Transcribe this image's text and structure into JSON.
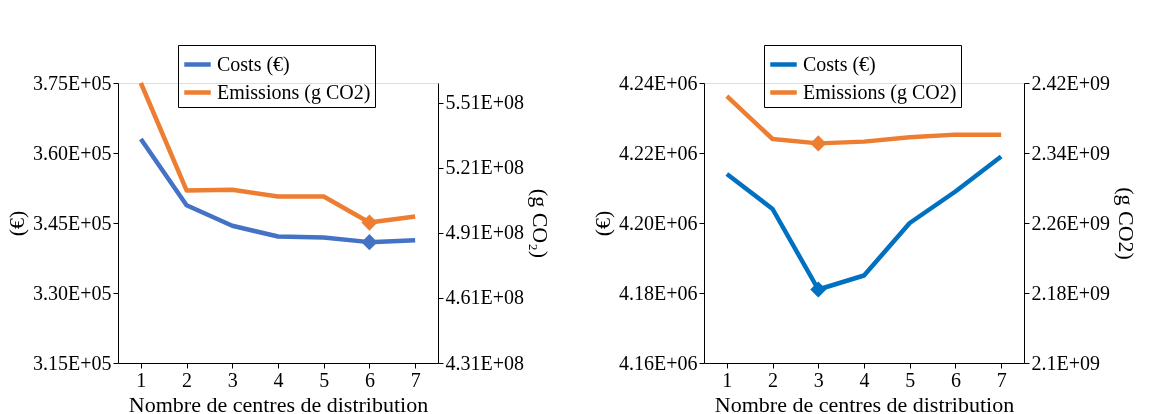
{
  "chart_data": [
    {
      "type": "line",
      "xlabel": "Nombre de centres de distribution",
      "ylabel": "(€)",
      "y2label": "(g CO₂)",
      "categories": [
        "1",
        "2",
        "3",
        "4",
        "5",
        "6",
        "7"
      ],
      "series": [
        {
          "name": "Costs (€)",
          "color": "#4472c4",
          "values": [
            363000,
            348800,
            344400,
            342100,
            341900,
            340900,
            341300
          ]
        },
        {
          "name": "Emissions (g CO2)",
          "color": "#ed7d31",
          "axis": "y2",
          "values": [
            560000000,
            510500000,
            510800000,
            507700000,
            507700000,
            495700000,
            498500000
          ]
        },
        {
          "type": "scatter",
          "marker": "diamond",
          "color": "#4472c4",
          "x": [
            "6"
          ],
          "values": [
            340900
          ]
        },
        {
          "type": "scatter",
          "marker": "diamond",
          "color": "#ed7d31",
          "axis": "y2",
          "x": [
            "6"
          ],
          "values": [
            495700000
          ]
        }
      ],
      "ylim": [
        315000,
        375000
      ],
      "yticks": [
        {
          "value": 315000,
          "label": "3.15E+05"
        },
        {
          "value": 330000,
          "label": "3.30E+05"
        },
        {
          "value": 345000,
          "label": "3.45E+05"
        },
        {
          "value": 360000,
          "label": "3.60E+05"
        },
        {
          "value": 375000,
          "label": "3.75E+05"
        }
      ],
      "y2lim": [
        431000000,
        560000000
      ],
      "y2ticks": [
        {
          "value": 431000000,
          "label": "4.31E+08"
        },
        {
          "value": 461000000,
          "label": "4.61E+08"
        },
        {
          "value": 491000000,
          "label": "4.91E+08"
        },
        {
          "value": 521000000,
          "label": "5.21E+08"
        },
        {
          "value": 551000000,
          "label": "5.51E+08"
        }
      ],
      "legend": "top",
      "grid": false
    },
    {
      "type": "line",
      "xlabel": "Nombre de centres de distribution",
      "ylabel": "(€)",
      "y2label": "(g CO2)",
      "categories": [
        "1",
        "2",
        "3",
        "4",
        "5",
        "6",
        "7"
      ],
      "series": [
        {
          "name": "Costs (€)",
          "color": "#0070c0",
          "values": [
            4214000,
            4204000,
            4181000,
            4185000,
            4200000,
            4209000,
            4219000
          ]
        },
        {
          "name": "Emissions (g CO2)",
          "color": "#ed7d31",
          "axis": "y2",
          "values": [
            2405000000,
            2356000000,
            2351000000,
            2353000000,
            2358000000,
            2361000000,
            2361000000
          ]
        },
        {
          "type": "scatter",
          "marker": "diamond",
          "color": "#0070c0",
          "x": [
            "3"
          ],
          "values": [
            4181000
          ]
        },
        {
          "type": "scatter",
          "marker": "diamond",
          "color": "#ed7d31",
          "axis": "y2",
          "x": [
            "3"
          ],
          "values": [
            2351000000
          ]
        }
      ],
      "ylim": [
        4160000,
        4240000
      ],
      "yticks": [
        {
          "value": 4160000,
          "label": "4.16E+06"
        },
        {
          "value": 4180000,
          "label": "4.18E+06"
        },
        {
          "value": 4200000,
          "label": "4.20E+06"
        },
        {
          "value": 4220000,
          "label": "4.22E+06"
        },
        {
          "value": 4240000,
          "label": "4.24E+06"
        }
      ],
      "y2lim": [
        2100000000,
        2420000000
      ],
      "y2ticks": [
        {
          "value": 2100000000,
          "label": "2.1E+09"
        },
        {
          "value": 2180000000,
          "label": "2.18E+09"
        },
        {
          "value": 2260000000,
          "label": "2.26E+09"
        },
        {
          "value": 2340000000,
          "label": "2.34E+09"
        },
        {
          "value": 2420000000,
          "label": "2.42E+09"
        }
      ],
      "legend": "top",
      "grid": false
    }
  ]
}
